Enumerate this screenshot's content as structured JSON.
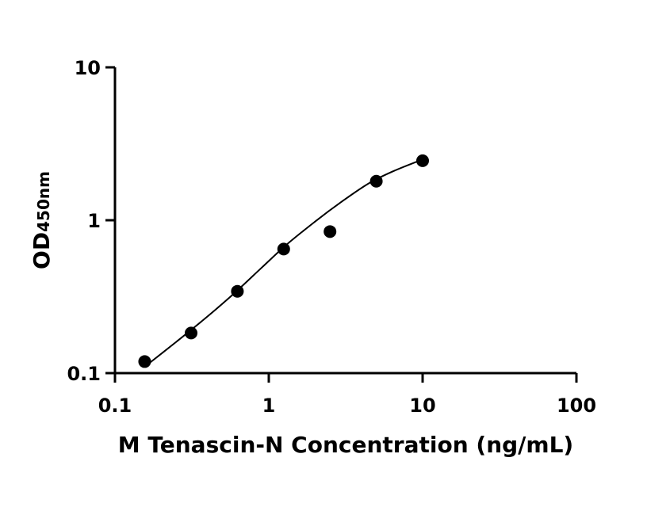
{
  "chart_data": {
    "type": "scatter",
    "title": "",
    "xlabel": "M Tenascin-N Concentration (ng/mL)",
    "ylabel": "OD",
    "ylabel_subscript": "450nm",
    "xscale": "log",
    "yscale": "log",
    "xlim": [
      0.1,
      100
    ],
    "ylim": [
      0.1,
      10
    ],
    "xticks": [
      "0.1",
      "1",
      "10",
      "100"
    ],
    "yticks": [
      "0.1",
      "1",
      "10"
    ],
    "grid": false,
    "legend": "none",
    "series": [
      {
        "x": [
          0.156,
          0.3125,
          0.625,
          1.25,
          2.5,
          5,
          10
        ],
        "y": [
          0.119,
          0.183,
          0.343,
          0.648,
          0.843,
          1.8,
          2.45
        ]
      }
    ],
    "fit_curve": {
      "x": [
        0.156,
        0.25,
        0.4,
        0.6,
        0.9,
        1.3,
        2.0,
        3.0,
        4.5,
        6.5,
        10
      ],
      "y": [
        0.11,
        0.16,
        0.235,
        0.335,
        0.49,
        0.69,
        0.98,
        1.33,
        1.75,
        2.1,
        2.5
      ]
    },
    "colors": {
      "points": "#000000",
      "curve": "#000000",
      "axes": "#000000"
    }
  }
}
